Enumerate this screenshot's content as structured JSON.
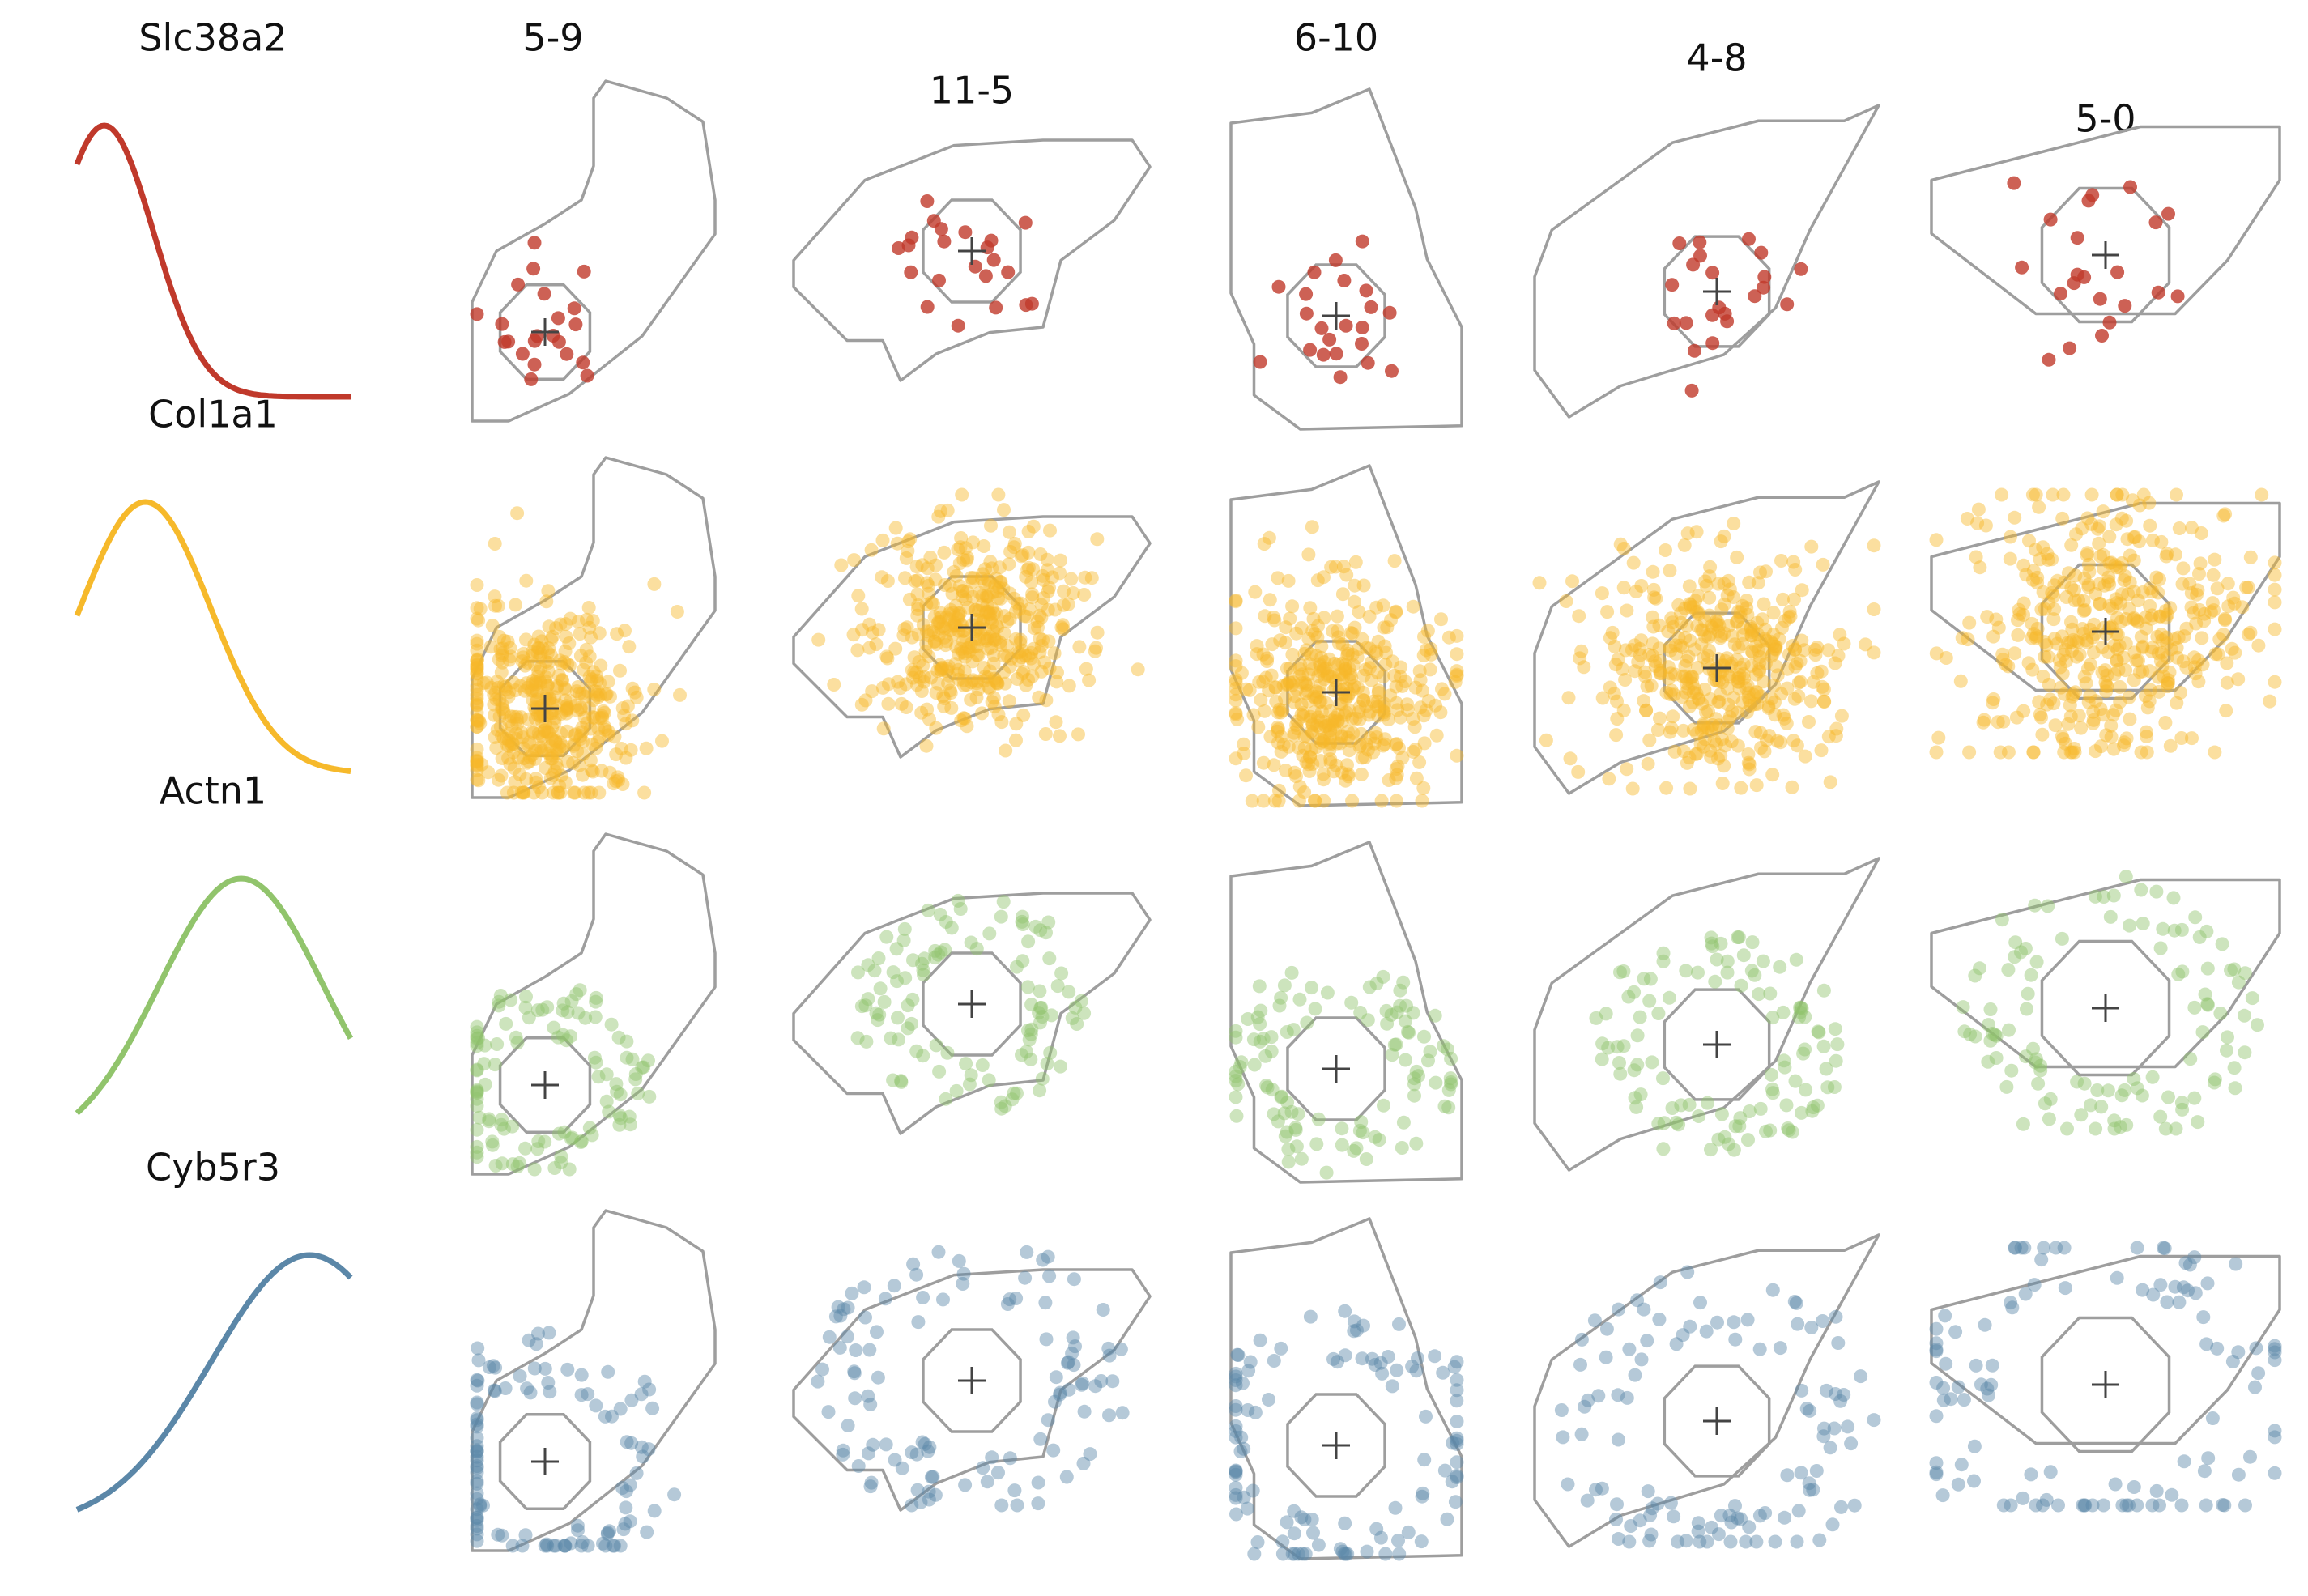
{
  "genes": [
    {
      "name": "Slc38a2",
      "color": "#c0392b",
      "peak": 0.1,
      "density": "low"
    },
    {
      "name": "Col1a1",
      "color": "#f6b92b",
      "peak": 0.25,
      "density": "high"
    },
    {
      "name": "Actn1",
      "color": "#91c46c",
      "peak": 0.6,
      "density": "medium"
    },
    {
      "name": "Cyb5r3",
      "color": "#5b87a8",
      "peak": 0.85,
      "density": "medium"
    }
  ],
  "cells": [
    {
      "label": "5-9"
    },
    {
      "label": "11-5"
    },
    {
      "label": "6-10"
    },
    {
      "label": "4-8"
    },
    {
      "label": "5-0"
    }
  ],
  "outline_color": "#9e9e9e",
  "centroid_color": "#444444",
  "nucleus_marker": "plus"
}
